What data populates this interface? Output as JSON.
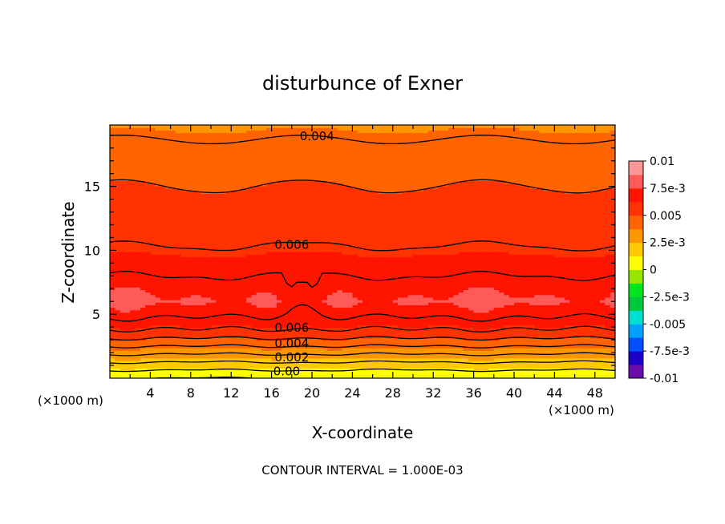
{
  "chart_data": {
    "type": "heatmap",
    "title": "disturbunce of Exner",
    "xlabel": "X-coordinate",
    "ylabel": "Z-coordinate",
    "x_unit": "(×1000 m)",
    "y_unit": "(×1000 m)",
    "xlim": [
      0,
      50
    ],
    "ylim": [
      0,
      19.8
    ],
    "x_ticks": [
      4,
      8,
      12,
      16,
      20,
      24,
      28,
      32,
      36,
      40,
      44,
      48
    ],
    "y_ticks": [
      5,
      10,
      15
    ],
    "footer": "CONTOUR INTERVAL = 1.000E-03",
    "colorbar": {
      "range": [
        -0.01,
        0.01
      ],
      "tick_labels": [
        "0.01",
        "7.5e-3",
        "0.005",
        "2.5e-3",
        "0",
        "-2.5e-3",
        "-0.005",
        "-7.5e-3",
        "-0.01"
      ],
      "colors": [
        "#6a0dad",
        "#1c00c8",
        "#0050ff",
        "#00a0ff",
        "#00e0d0",
        "#00c83c",
        "#00e61e",
        "#96e600",
        "#ffff00",
        "#ffc800",
        "#ff9600",
        "#ff6400",
        "#ff3200",
        "#ff1400",
        "#ff5a5a",
        "#ff9696"
      ]
    },
    "field_profile": {
      "z": [
        0,
        0.5,
        1,
        1.5,
        2,
        2.5,
        3,
        3.5,
        4,
        4.5,
        5,
        6,
        7,
        8,
        9,
        10,
        11,
        12,
        13,
        14,
        15,
        16,
        17,
        18,
        19,
        19.8
      ],
      "value": [
        0.0,
        0.0008,
        0.0016,
        0.0024,
        0.0032,
        0.004,
        0.0048,
        0.0056,
        0.0062,
        0.0068,
        0.0072,
        0.0076,
        0.0074,
        0.007,
        0.0066,
        0.0061,
        0.0058,
        0.0056,
        0.0054,
        0.0052,
        0.005,
        0.0048,
        0.0045,
        0.0042,
        0.0039,
        0.0036
      ]
    },
    "contour_labels": [
      {
        "text": "0.004",
        "x": 20.5,
        "z": 19.0
      },
      {
        "text": "0.006",
        "x": 18.0,
        "z": 10.5
      },
      {
        "text": "0.006",
        "x": 18.0,
        "z": 4.0
      },
      {
        "text": "0.004",
        "x": 18.0,
        "z": 2.8
      },
      {
        "text": "0.002",
        "x": 18.0,
        "z": 1.7
      },
      {
        "text": "0.00",
        "x": 17.5,
        "z": 0.6
      }
    ]
  }
}
